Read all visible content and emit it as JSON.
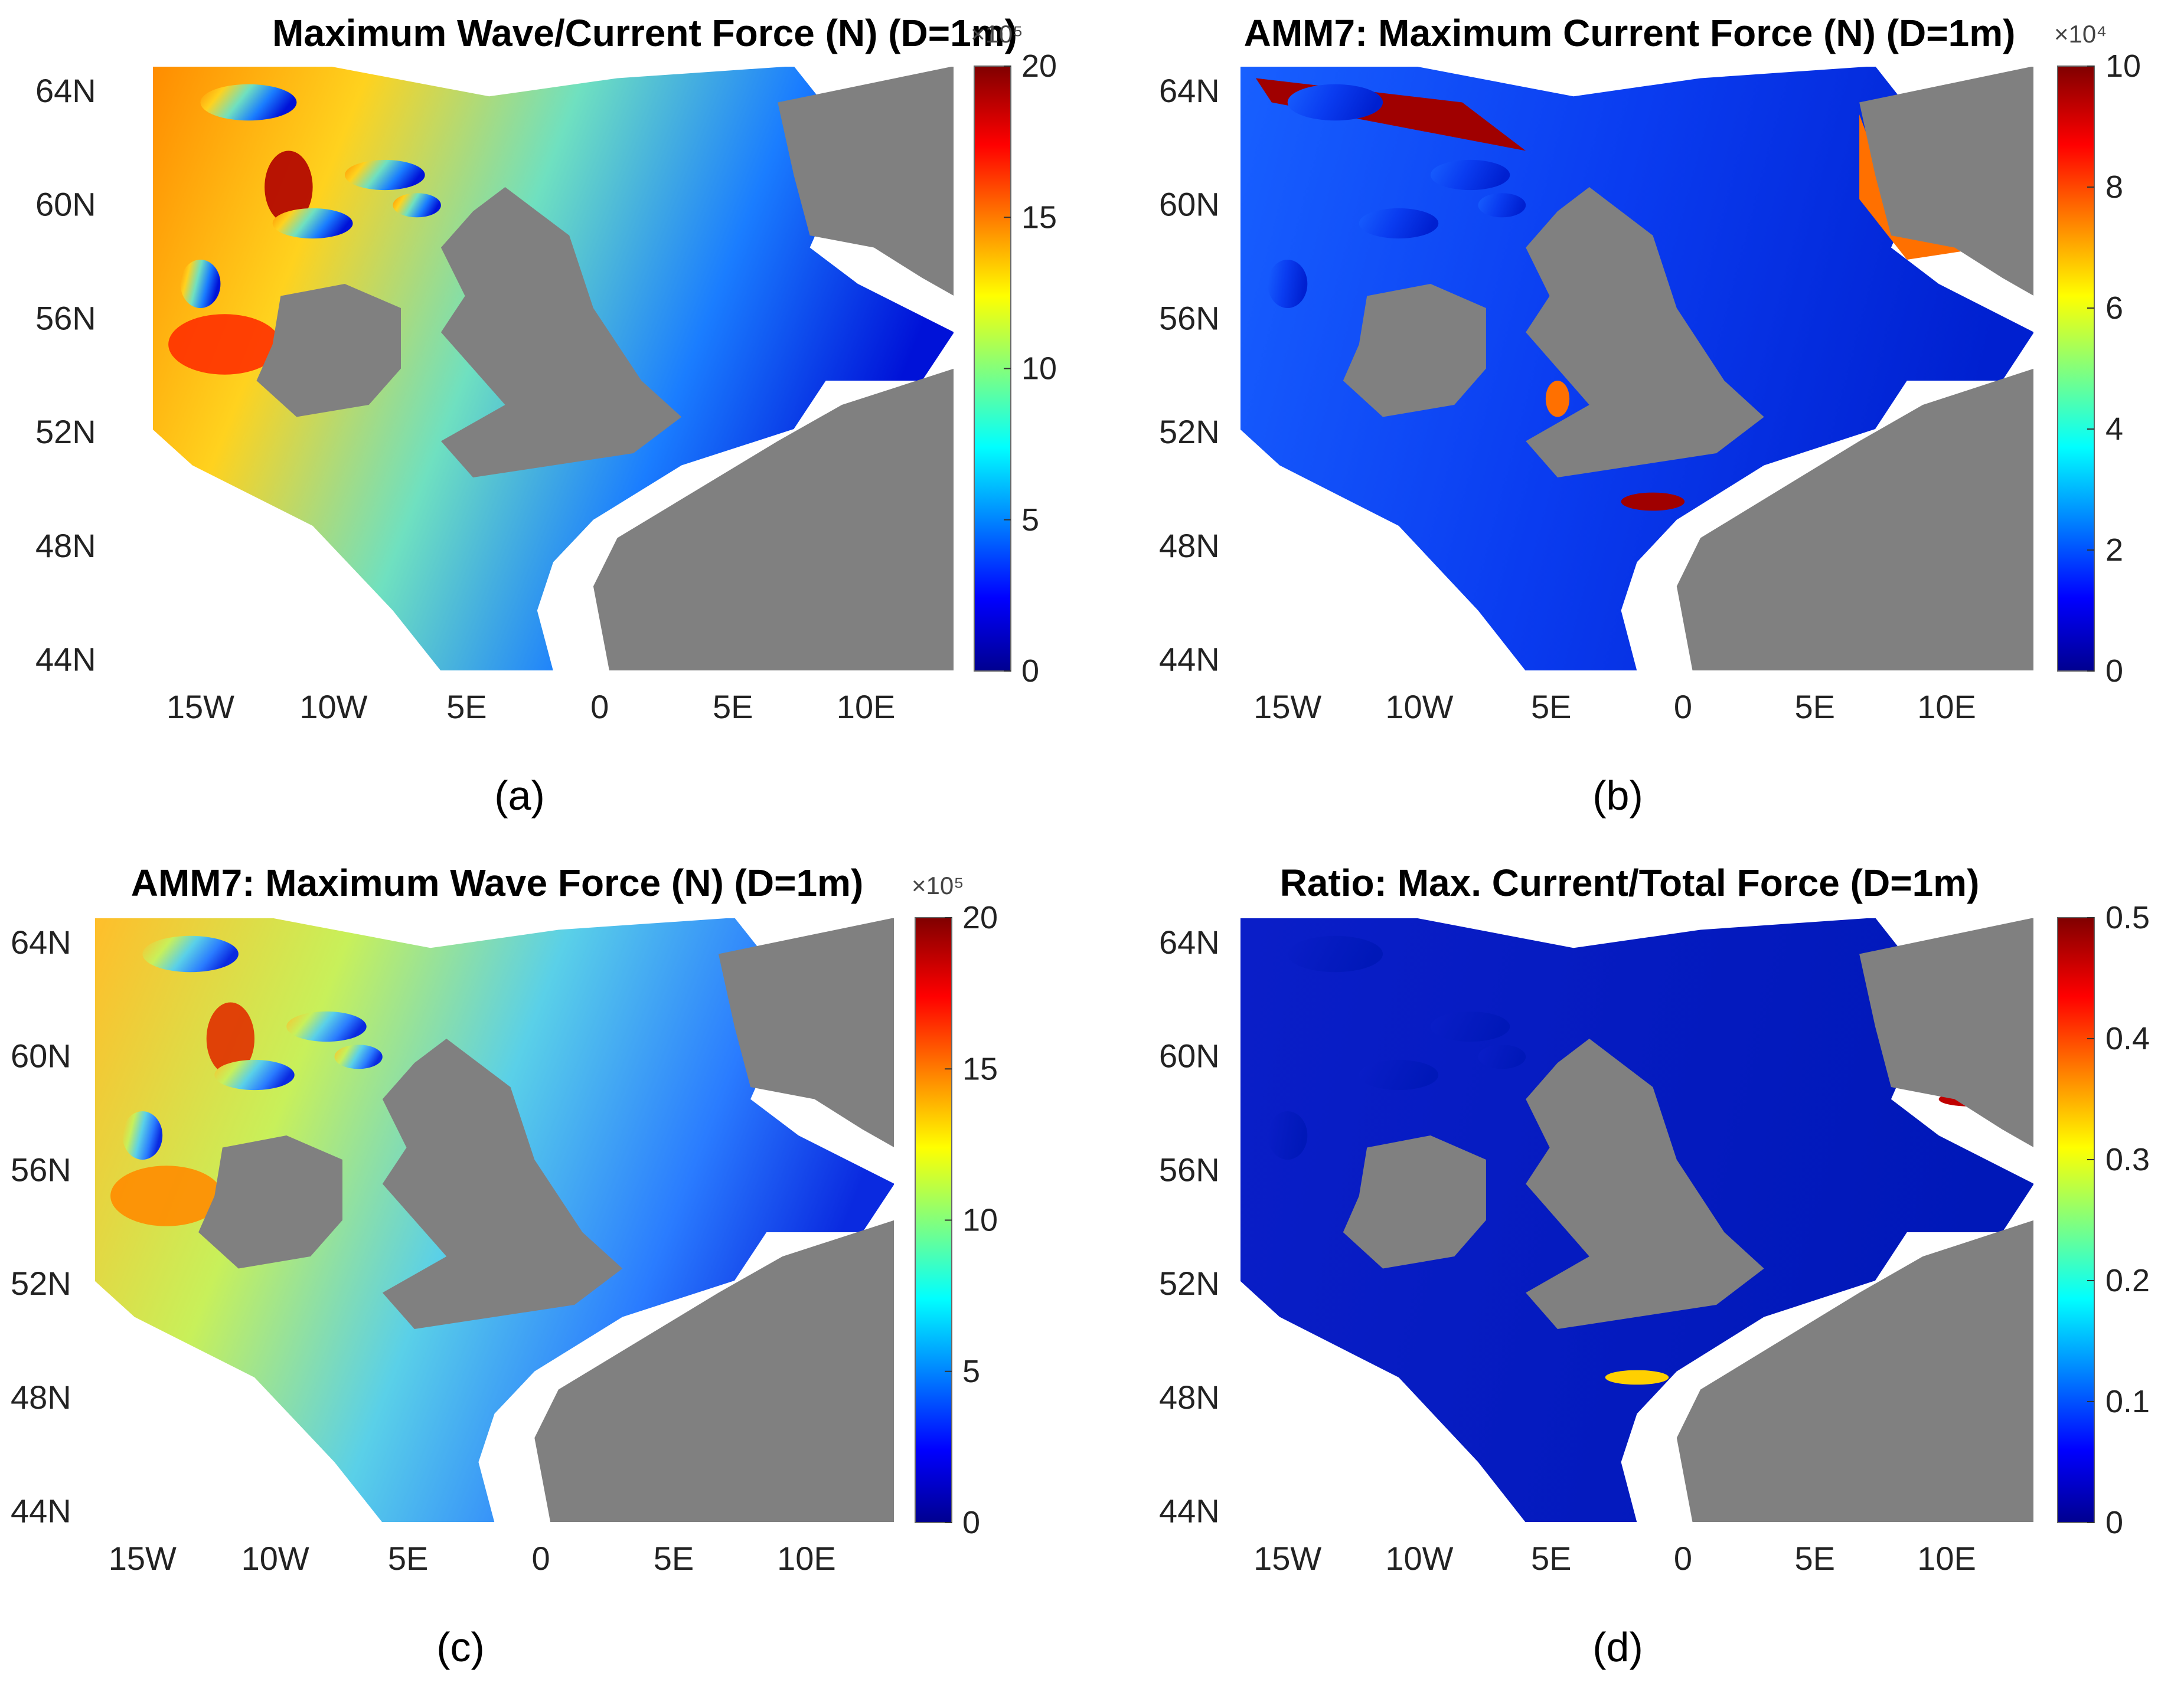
{
  "chart_data": [
    {
      "type": "heatmap",
      "panel": "(a)",
      "title": "Maximum Wave/Current Force (N)  (D=1m)",
      "y_ticks": [
        "64N",
        "60N",
        "56N",
        "52N",
        "48N",
        "44N"
      ],
      "x_ticks": [
        "15W",
        "10W",
        "5E",
        "0",
        "5E",
        "10E"
      ],
      "colorbar": {
        "ticks": [
          "0",
          "5",
          "10",
          "15",
          "20"
        ],
        "range": [
          0,
          20
        ],
        "multiplier": "×10⁵"
      },
      "caption": "(a)",
      "style": "wave_total"
    },
    {
      "type": "heatmap",
      "panel": "(b)",
      "title": "AMM7: Maximum Current Force (N) (D=1m)",
      "y_ticks": [
        "64N",
        "60N",
        "56N",
        "52N",
        "48N",
        "44N"
      ],
      "x_ticks": [
        "15W",
        "10W",
        "5E",
        "0",
        "5E",
        "10E"
      ],
      "colorbar": {
        "ticks": [
          "0",
          "2",
          "4",
          "6",
          "8",
          "10"
        ],
        "range": [
          0,
          10
        ],
        "multiplier": "×10⁴"
      },
      "caption": "(b)",
      "style": "current"
    },
    {
      "type": "heatmap",
      "panel": "(c)",
      "title": "AMM7: Maximum Wave Force (N)  (D=1m)",
      "y_ticks": [
        "64N",
        "60N",
        "56N",
        "52N",
        "48N",
        "44N"
      ],
      "x_ticks": [
        "15W",
        "10W",
        "5E",
        "0",
        "5E",
        "10E"
      ],
      "colorbar": {
        "ticks": [
          "0",
          "5",
          "10",
          "15",
          "20"
        ],
        "range": [
          0,
          20
        ],
        "multiplier": "×10⁵"
      },
      "caption": "(c)",
      "style": "wave"
    },
    {
      "type": "heatmap",
      "panel": "(d)",
      "title": "Ratio: Max. Current/Total Force (D=1m)",
      "y_ticks": [
        "64N",
        "60N",
        "56N",
        "52N",
        "48N",
        "44N"
      ],
      "x_ticks": [
        "15W",
        "10W",
        "5E",
        "0",
        "5E",
        "10E"
      ],
      "colorbar": {
        "ticks": [
          "0",
          "0.1",
          "0.2",
          "0.3",
          "0.4",
          "0.5"
        ],
        "range": [
          0,
          0.5
        ],
        "multiplier": ""
      },
      "caption": "(d)",
      "style": "ratio"
    }
  ],
  "colors": {
    "land": "#808080",
    "background": "#ffffff",
    "colormap": "jet"
  }
}
